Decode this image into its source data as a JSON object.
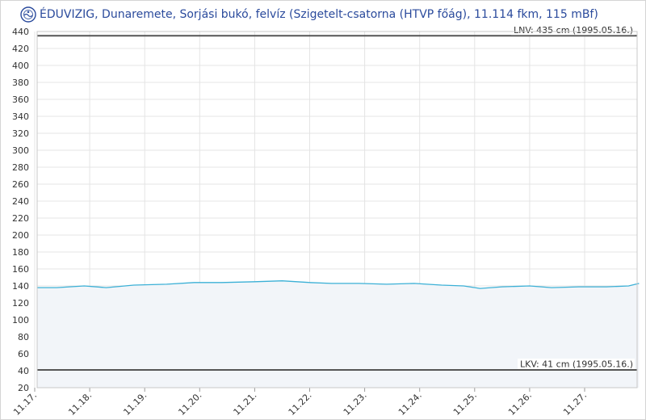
{
  "header": {
    "title": "ÉDUVIZIG, Dunaremete, Sorjási bukó, felvíz (Szigetelt-csatorna (HTVP főág), 11.114 fkm, 115 mBf)",
    "logo_icon": "eduvizig-logo-icon"
  },
  "colors": {
    "title": "#2a4a9c",
    "series": "#3bb0d6",
    "fill": "#f2f5f9",
    "reference": "#555555",
    "grid": "#e4e4e4"
  },
  "chart_data": {
    "type": "line",
    "ylim": [
      20,
      440
    ],
    "yticks": [
      20,
      40,
      60,
      80,
      100,
      120,
      140,
      160,
      180,
      200,
      220,
      240,
      260,
      280,
      300,
      320,
      340,
      360,
      380,
      400,
      420,
      440
    ],
    "xticks": [
      "11.17.",
      "11.18.",
      "11.19.",
      "11.20.",
      "11.21.",
      "11.22.",
      "11.23.",
      "11.24.",
      "11.25.",
      "11.26.",
      "11.27."
    ],
    "xlim": [
      0,
      10.99
    ],
    "grid": true,
    "series": [
      {
        "x": [
          0,
          0.4,
          0.9,
          1.3,
          1.8,
          2.4,
          2.9,
          3.4,
          4.0,
          4.5,
          5.0,
          5.4,
          5.9,
          6.4,
          6.9,
          7.4,
          7.8,
          8.1,
          8.5,
          9.0,
          9.4,
          9.9,
          10.4,
          10.8,
          10.99
        ],
        "y": [
          138,
          138,
          140,
          138,
          141,
          142,
          144,
          144,
          145,
          146,
          144,
          143,
          143,
          142,
          143,
          141,
          140,
          137,
          139,
          140,
          138,
          139,
          139,
          140,
          143
        ]
      }
    ],
    "reference_lines": [
      {
        "label": "LNV: 435 cm (1995.05.16.)",
        "value": 435,
        "position": "top-right"
      },
      {
        "label": "LKV: 41 cm (1995.05.16.)",
        "value": 41,
        "position": "top-right"
      }
    ]
  }
}
